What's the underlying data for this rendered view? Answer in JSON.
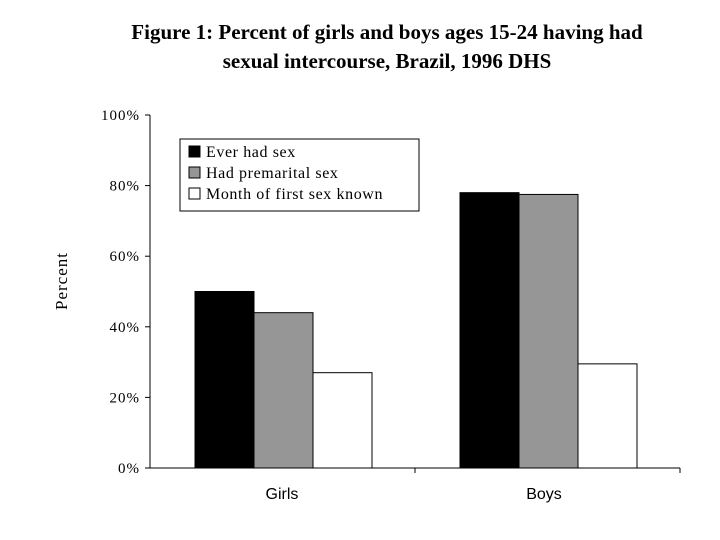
{
  "chart_data": {
    "type": "bar",
    "title": "Figure 1: Percent of girls and boys ages 15-24 having had sexual intercourse, Brazil, 1996 DHS",
    "title_lines": [
      "Figure 1: Percent of girls and boys ages 15-24 having had",
      "sexual intercourse, Brazil, 1996 DHS"
    ],
    "xlabel": "",
    "ylabel": "Percent",
    "categories": [
      "Girls",
      "Boys"
    ],
    "series": [
      {
        "name": "Ever had sex",
        "values": [
          50,
          78
        ],
        "color": "#000000"
      },
      {
        "name": "Had premarital sex",
        "values": [
          44,
          77.5
        ],
        "color": "#969696"
      },
      {
        "name": "Month of first sex known",
        "values": [
          27,
          29.5
        ],
        "color": "#ffffff"
      }
    ],
    "ylim": [
      0,
      100
    ],
    "yticks": [
      0,
      20,
      40,
      60,
      80,
      100
    ],
    "ytick_labels": [
      "0%",
      "20%",
      "40%",
      "60%",
      "80%",
      "100%"
    ],
    "grid": false,
    "legend_position": "top-left"
  }
}
